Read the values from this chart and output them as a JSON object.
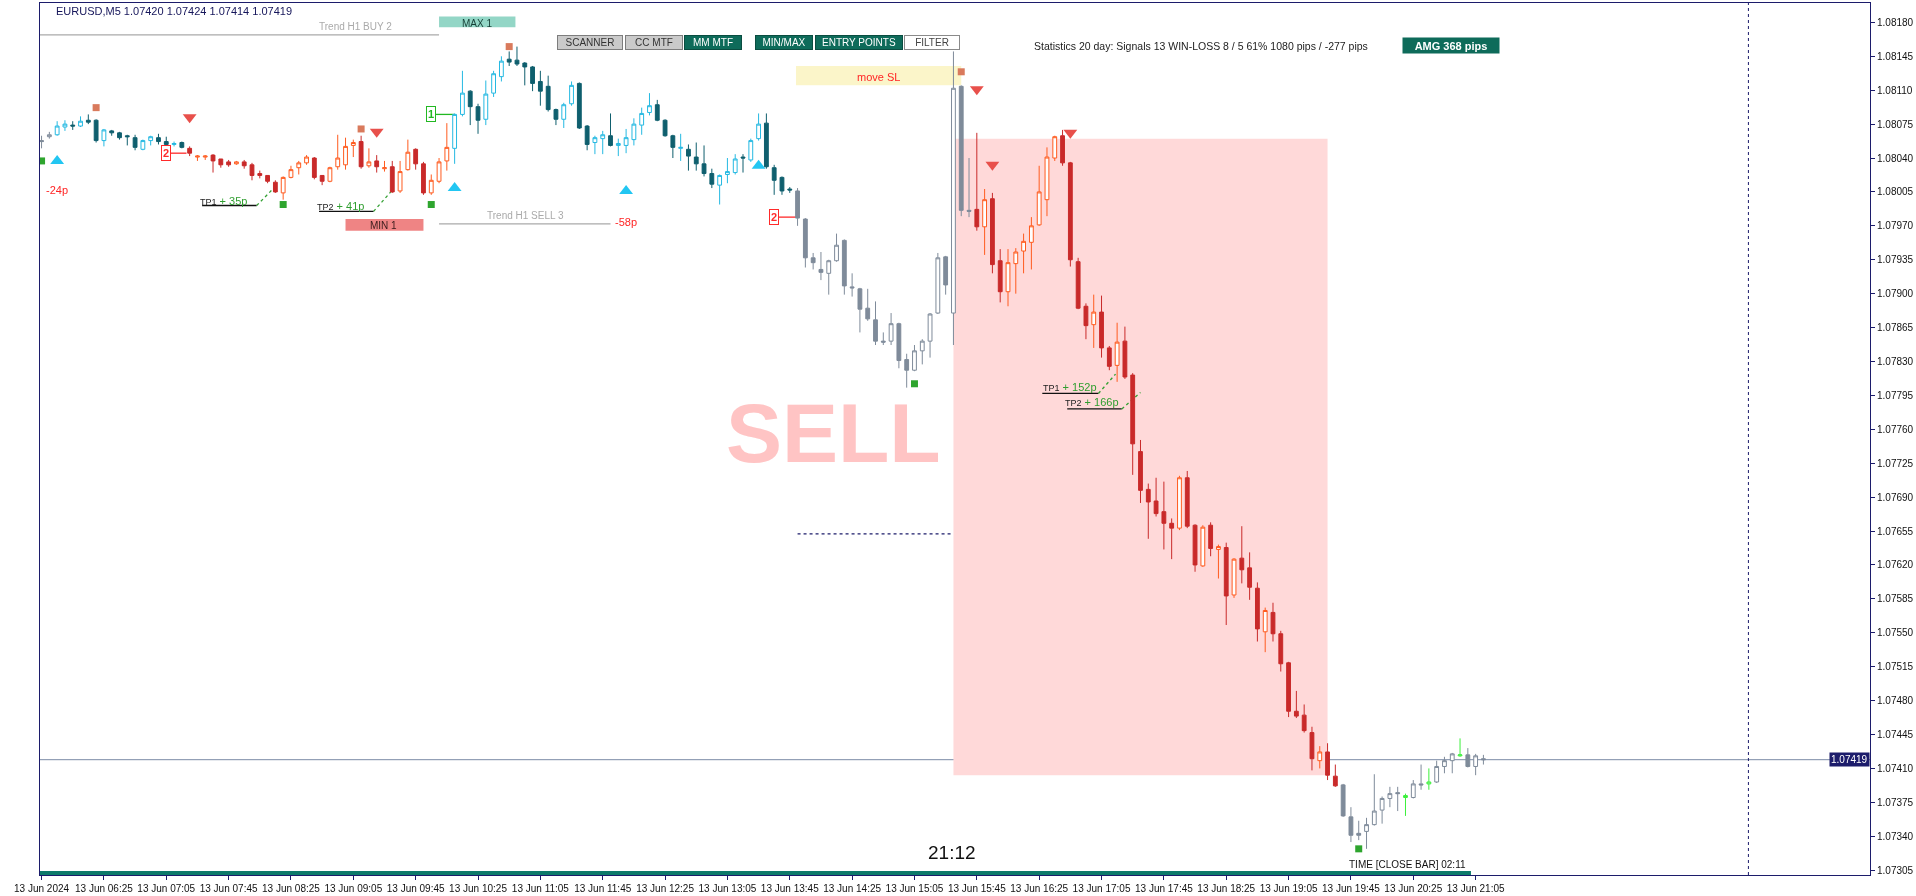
{
  "chart_data": {
    "type": "candlestick",
    "title": "EURUSD,M5 1.07420 1.07424 1.07414 1.07419",
    "x": [
      "2024-06-13T05:45",
      "2024-06-13T05:50",
      "2024-06-13T05:55",
      "2024-06-13T06:00",
      "2024-06-13T06:05",
      "2024-06-13T06:10",
      "2024-06-13T06:15",
      "2024-06-13T06:20",
      "2024-06-13T06:25",
      "2024-06-13T06:30",
      "2024-06-13T06:35",
      "2024-06-13T06:40",
      "2024-06-13T06:45",
      "2024-06-13T06:50",
      "2024-06-13T06:55",
      "2024-06-13T07:00",
      "2024-06-13T07:05",
      "2024-06-13T07:10",
      "2024-06-13T07:15",
      "2024-06-13T07:20",
      "2024-06-13T07:25",
      "2024-06-13T07:30",
      "2024-06-13T07:35",
      "2024-06-13T07:40",
      "2024-06-13T07:45",
      "2024-06-13T07:50",
      "2024-06-13T07:55",
      "2024-06-13T08:00",
      "2024-06-13T08:05",
      "2024-06-13T08:10",
      "2024-06-13T08:15",
      "2024-06-13T08:20",
      "2024-06-13T08:25",
      "2024-06-13T08:30",
      "2024-06-13T08:35",
      "2024-06-13T08:40",
      "2024-06-13T08:45",
      "2024-06-13T08:50",
      "2024-06-13T08:55",
      "2024-06-13T09:00",
      "2024-06-13T09:05",
      "2024-06-13T09:10",
      "2024-06-13T09:15",
      "2024-06-13T09:20",
      "2024-06-13T09:25",
      "2024-06-13T09:30",
      "2024-06-13T09:35",
      "2024-06-13T09:40",
      "2024-06-13T09:45",
      "2024-06-13T09:50",
      "2024-06-13T09:55",
      "2024-06-13T10:00",
      "2024-06-13T10:05",
      "2024-06-13T10:10",
      "2024-06-13T10:15",
      "2024-06-13T10:20",
      "2024-06-13T10:25",
      "2024-06-13T10:30",
      "2024-06-13T10:35",
      "2024-06-13T10:40",
      "2024-06-13T10:45",
      "2024-06-13T10:50",
      "2024-06-13T10:55",
      "2024-06-13T11:00",
      "2024-06-13T11:05",
      "2024-06-13T11:10",
      "2024-06-13T11:15",
      "2024-06-13T11:20",
      "2024-06-13T11:25",
      "2024-06-13T11:30",
      "2024-06-13T11:35",
      "2024-06-13T11:40",
      "2024-06-13T11:45",
      "2024-06-13T11:50",
      "2024-06-13T11:55",
      "2024-06-13T12:00",
      "2024-06-13T12:05",
      "2024-06-13T12:10",
      "2024-06-13T12:15",
      "2024-06-13T12:20",
      "2024-06-13T12:25",
      "2024-06-13T12:30",
      "2024-06-13T12:35",
      "2024-06-13T12:40",
      "2024-06-13T12:45",
      "2024-06-13T12:50",
      "2024-06-13T12:55",
      "2024-06-13T13:00",
      "2024-06-13T13:05",
      "2024-06-13T13:10",
      "2024-06-13T13:15",
      "2024-06-13T13:20",
      "2024-06-13T13:25",
      "2024-06-13T13:30",
      "2024-06-13T13:35",
      "2024-06-13T13:40",
      "2024-06-13T13:45",
      "2024-06-13T13:50",
      "2024-06-13T13:55",
      "2024-06-13T14:00",
      "2024-06-13T14:05",
      "2024-06-13T14:10",
      "2024-06-13T14:15",
      "2024-06-13T14:20",
      "2024-06-13T14:25",
      "2024-06-13T14:30",
      "2024-06-13T14:35",
      "2024-06-13T14:40",
      "2024-06-13T14:45",
      "2024-06-13T14:50",
      "2024-06-13T14:55",
      "2024-06-13T15:00",
      "2024-06-13T15:05",
      "2024-06-13T15:10",
      "2024-06-13T15:15",
      "2024-06-13T15:20",
      "2024-06-13T15:25",
      "2024-06-13T15:30",
      "2024-06-13T15:35",
      "2024-06-13T15:40",
      "2024-06-13T15:45",
      "2024-06-13T15:50",
      "2024-06-13T15:55",
      "2024-06-13T16:00",
      "2024-06-13T16:05",
      "2024-06-13T16:10",
      "2024-06-13T16:15",
      "2024-06-13T16:20",
      "2024-06-13T16:25",
      "2024-06-13T16:30",
      "2024-06-13T16:35",
      "2024-06-13T16:40",
      "2024-06-13T16:45",
      "2024-06-13T16:50",
      "2024-06-13T16:55",
      "2024-06-13T17:00",
      "2024-06-13T17:05",
      "2024-06-13T17:10",
      "2024-06-13T17:15",
      "2024-06-13T17:20",
      "2024-06-13T17:25",
      "2024-06-13T17:30",
      "2024-06-13T17:35",
      "2024-06-13T17:40",
      "2024-06-13T17:45",
      "2024-06-13T17:50",
      "2024-06-13T17:55",
      "2024-06-13T18:00",
      "2024-06-13T18:05",
      "2024-06-13T18:10",
      "2024-06-13T18:15",
      "2024-06-13T18:20",
      "2024-06-13T18:25",
      "2024-06-13T18:30",
      "2024-06-13T18:35",
      "2024-06-13T18:40",
      "2024-06-13T18:45",
      "2024-06-13T18:50",
      "2024-06-13T18:55",
      "2024-06-13T19:00",
      "2024-06-13T19:05",
      "2024-06-13T19:10",
      "2024-06-13T19:15",
      "2024-06-13T19:20",
      "2024-06-13T19:25",
      "2024-06-13T19:30",
      "2024-06-13T19:35",
      "2024-06-13T19:40",
      "2024-06-13T19:45",
      "2024-06-13T19:50",
      "2024-06-13T19:55",
      "2024-06-13T20:00",
      "2024-06-13T20:05",
      "2024-06-13T20:10",
      "2024-06-13T20:15",
      "2024-06-13T20:20",
      "2024-06-13T20:25",
      "2024-06-13T20:30",
      "2024-06-13T20:35",
      "2024-06-13T20:40",
      "2024-06-13T20:45",
      "2024-06-13T20:50",
      "2024-06-13T20:55",
      "2024-06-13T21:00",
      "2024-06-13T21:05",
      "2024-06-13T21:10"
    ],
    "ohlc": [
      [
        1.08058,
        1.08063,
        1.0805,
        1.08057
      ],
      [
        1.08062,
        1.08067,
        1.0806,
        1.08064
      ],
      [
        1.08064,
        1.08078,
        1.08063,
        1.08073
      ],
      [
        1.08072,
        1.08079,
        1.08068,
        1.08075
      ],
      [
        1.08074,
        1.08078,
        1.08069,
        1.08073
      ],
      [
        1.08073,
        1.08083,
        1.08072,
        1.08078
      ],
      [
        1.08079,
        1.08085,
        1.08075,
        1.08077
      ],
      [
        1.08079,
        1.0808,
        1.08056,
        1.08058
      ],
      [
        1.08058,
        1.0807,
        1.08052,
        1.08069
      ],
      [
        1.08068,
        1.08069,
        1.08063,
        1.08066
      ],
      [
        1.08066,
        1.08067,
        1.08059,
        1.08061
      ],
      [
        1.08063,
        1.08064,
        1.08053,
        1.08062
      ],
      [
        1.08061,
        1.08064,
        1.08048,
        1.08051
      ],
      [
        1.08049,
        1.08059,
        1.08048,
        1.08058
      ],
      [
        1.08058,
        1.08063,
        1.08053,
        1.08062
      ],
      [
        1.08061,
        1.08065,
        1.08054,
        1.08057
      ],
      [
        1.08057,
        1.08062,
        1.08053,
        1.08054
      ],
      [
        1.08054,
        1.08057,
        1.08052,
        1.08055
      ],
      [
        1.08056,
        1.08057,
        1.0805,
        1.08051
      ],
      [
        1.0805,
        1.08052,
        1.08042,
        1.08045
      ],
      [
        1.08041,
        1.08043,
        1.08037,
        1.08042
      ],
      [
        1.08041,
        1.08043,
        1.08038,
        1.08042
      ],
      [
        1.08043,
        1.08044,
        1.08025,
        1.08037
      ],
      [
        1.08039,
        1.08039,
        1.0803,
        1.08033
      ],
      [
        1.08036,
        1.08038,
        1.08031,
        1.08033
      ],
      [
        1.08034,
        1.08037,
        1.08033,
        1.08036
      ],
      [
        1.08036,
        1.08038,
        1.08029,
        1.08032
      ],
      [
        1.08033,
        1.08035,
        1.08017,
        1.08022
      ],
      [
        1.08024,
        1.08027,
        1.08019,
        1.08022
      ],
      [
        1.08022,
        1.08022,
        1.08014,
        1.08016
      ],
      [
        1.08015,
        1.08017,
        1.08004,
        1.08005
      ],
      [
        1.08004,
        1.08021,
        1.07997,
        1.0802
      ],
      [
        1.0802,
        1.08032,
        1.08019,
        1.08028
      ],
      [
        1.0803,
        1.08037,
        1.08023,
        1.08035
      ],
      [
        1.08035,
        1.08043,
        1.08033,
        1.08041
      ],
      [
        1.0804,
        1.08041,
        1.08018,
        1.0802
      ],
      [
        1.08022,
        1.08022,
        1.08012,
        1.08016
      ],
      [
        1.08016,
        1.08031,
        1.08015,
        1.0803
      ],
      [
        1.08031,
        1.08064,
        1.08028,
        1.0804
      ],
      [
        1.08033,
        1.08061,
        1.08028,
        1.08052
      ],
      [
        1.08053,
        1.08059,
        1.08041,
        1.08056
      ],
      [
        1.08057,
        1.08063,
        1.08029,
        1.08031
      ],
      [
        1.08032,
        1.0805,
        1.0803,
        1.08036
      ],
      [
        1.08037,
        1.08043,
        1.08025,
        1.08031
      ],
      [
        1.08029,
        1.08037,
        1.08026,
        1.0803
      ],
      [
        1.08031,
        1.08037,
        1.08004,
        1.08005
      ],
      [
        1.08006,
        1.08037,
        1.08004,
        1.08026
      ],
      [
        1.08028,
        1.08059,
        1.08027,
        1.08046
      ],
      [
        1.08049,
        1.0805,
        1.08028,
        1.08034
      ],
      [
        1.08034,
        1.08036,
        1.08002,
        1.08004
      ],
      [
        1.08004,
        1.08023,
        1.08002,
        1.08017
      ],
      [
        1.08016,
        1.0804,
        1.08014,
        1.08036
      ],
      [
        1.08037,
        1.08076,
        1.08027,
        1.08051
      ],
      [
        1.0805,
        1.08086,
        1.08034,
        1.08085
      ],
      [
        1.08085,
        1.0813,
        1.08083,
        1.08107
      ],
      [
        1.08109,
        1.0811,
        1.08074,
        1.08093
      ],
      [
        1.08093,
        1.08096,
        1.08065,
        1.08079
      ],
      [
        1.0808,
        1.0812,
        1.08074,
        1.08106
      ],
      [
        1.08107,
        1.0813,
        1.08103,
        1.08127
      ],
      [
        1.08124,
        1.08145,
        1.08119,
        1.0814
      ],
      [
        1.08142,
        1.0815,
        1.08135,
        1.08139
      ],
      [
        1.08141,
        1.08155,
        1.08135,
        1.08137
      ],
      [
        1.08138,
        1.08139,
        1.08115,
        1.08134
      ],
      [
        1.08134,
        1.08135,
        1.08109,
        1.08117
      ],
      [
        1.08119,
        1.0813,
        1.08094,
        1.08109
      ],
      [
        1.08114,
        1.08125,
        1.08088,
        1.0809
      ],
      [
        1.0809,
        1.08091,
        1.08074,
        1.0808
      ],
      [
        1.0808,
        1.08097,
        1.08071,
        1.08095
      ],
      [
        1.08096,
        1.08119,
        1.08094,
        1.08115
      ],
      [
        1.08117,
        1.08118,
        1.0807,
        1.08071
      ],
      [
        1.08073,
        1.08074,
        1.08048,
        1.08054
      ],
      [
        1.08056,
        1.08063,
        1.08044,
        1.08061
      ],
      [
        1.0806,
        1.08068,
        1.08044,
        1.08064
      ],
      [
        1.08063,
        1.08086,
        1.08052,
        1.08053
      ],
      [
        1.08053,
        1.0806,
        1.08042,
        1.08055
      ],
      [
        1.08053,
        1.0807,
        1.08045,
        1.08061
      ],
      [
        1.08059,
        1.08081,
        1.08053,
        1.08075
      ],
      [
        1.08074,
        1.08092,
        1.08064,
        1.08086
      ],
      [
        1.08087,
        1.08107,
        1.08084,
        1.08094
      ],
      [
        1.08095,
        1.081,
        1.08078,
        1.08079
      ],
      [
        1.08079,
        1.0808,
        1.08062,
        1.08063
      ],
      [
        1.08063,
        1.08064,
        1.0804,
        1.08051
      ],
      [
        1.0805,
        1.08065,
        1.08037,
        1.08051
      ],
      [
        1.08049,
        1.08054,
        1.08027,
        1.08042
      ],
      [
        1.08041,
        1.08056,
        1.08027,
        1.08034
      ],
      [
        1.08034,
        1.08053,
        1.08021,
        1.08024
      ],
      [
        1.08024,
        1.08029,
        1.08009,
        1.08013
      ],
      [
        1.08012,
        1.08023,
        1.07992,
        1.08022
      ],
      [
        1.08023,
        1.0804,
        1.08014,
        1.08026
      ],
      [
        1.08025,
        1.08044,
        1.08023,
        1.08039
      ],
      [
        1.08041,
        1.08044,
        1.08025,
        1.0804
      ],
      [
        1.08038,
        1.0806,
        1.08036,
        1.08058
      ],
      [
        1.0806,
        1.08086,
        1.08058,
        1.08075
      ],
      [
        1.08076,
        1.08086,
        1.08029,
        1.08031
      ],
      [
        1.0803,
        1.08033,
        1.08002,
        1.08017
      ],
      [
        1.0802,
        1.08021,
        1.08002,
        1.08006
      ],
      [
        1.08008,
        1.0801,
        1.08004,
        1.08007
      ],
      [
        1.08006,
        1.08009,
        1.0797,
        1.07978
      ],
      [
        1.07977,
        1.07978,
        1.07927,
        1.07937
      ],
      [
        1.07937,
        1.07942,
        1.07925,
        1.07932
      ],
      [
        1.07925,
        1.07943,
        1.07914,
        1.07922
      ],
      [
        1.07921,
        1.07935,
        1.07899,
        1.07934
      ],
      [
        1.07934,
        1.07962,
        1.07933,
        1.0795
      ],
      [
        1.07955,
        1.07956,
        1.07899,
        1.07908
      ],
      [
        1.07907,
        1.07921,
        1.07897,
        1.07906
      ],
      [
        1.07905,
        1.07906,
        1.0786,
        1.07884
      ],
      [
        1.07885,
        1.07905,
        1.07872,
        1.07874
      ],
      [
        1.07873,
        1.07892,
        1.07847,
        1.07851
      ],
      [
        1.07851,
        1.0786,
        1.07847,
        1.0785
      ],
      [
        1.07851,
        1.0788,
        1.07847,
        1.07869
      ],
      [
        1.07869,
        1.0787,
        1.07823,
        1.07831
      ],
      [
        1.07832,
        1.07838,
        1.07803,
        1.07821
      ],
      [
        1.07821,
        1.07847,
        1.0782,
        1.07841
      ],
      [
        1.07841,
        1.07853,
        1.07827,
        1.07851
      ],
      [
        1.07851,
        1.0788,
        1.07834,
        1.07879
      ],
      [
        1.0788,
        1.07942,
        1.07879,
        1.07937
      ],
      [
        1.07938,
        1.07939,
        1.07899,
        1.07909
      ],
      [
        1.0788,
        1.0815,
        1.07847,
        1.08112
      ],
      [
        1.08114,
        1.08115,
        1.0798,
        1.07986
      ],
      [
        1.07986,
        1.0804,
        1.07979,
        1.07985
      ],
      [
        1.07987,
        1.08066,
        1.07965,
        1.07969
      ],
      [
        1.07969,
        1.08008,
        1.0794,
        1.07997
      ],
      [
        1.07998,
        1.08004,
        1.07921,
        1.0793
      ],
      [
        1.07934,
        1.07946,
        1.07891,
        1.07902
      ],
      [
        1.07902,
        1.07946,
        1.07887,
        1.07932
      ],
      [
        1.07931,
        1.07947,
        1.079,
        1.07943
      ],
      [
        1.07944,
        1.07962,
        1.07921,
        1.07954
      ],
      [
        1.07953,
        1.07979,
        1.07925,
        1.0797
      ],
      [
        1.07971,
        1.08032,
        1.0797,
        1.08005
      ],
      [
        1.07997,
        1.08051,
        1.0798,
        1.08041
      ],
      [
        1.0804,
        1.08063,
        1.08037,
        1.08062
      ],
      [
        1.08063,
        1.08069,
        1.08032,
        1.08035
      ],
      [
        1.08035,
        1.08036,
        1.07928,
        1.07935
      ],
      [
        1.07933,
        1.07937,
        1.07884,
        1.07885
      ],
      [
        1.07887,
        1.0789,
        1.07853,
        1.07867
      ],
      [
        1.07868,
        1.07899,
        1.07844,
        1.07881
      ],
      [
        1.07881,
        1.07898,
        1.07834,
        1.07844
      ],
      [
        1.07844,
        1.07846,
        1.07821,
        1.07825
      ],
      [
        1.07826,
        1.0787,
        1.07809,
        1.0785
      ],
      [
        1.07851,
        1.07866,
        1.07812,
        1.07814
      ],
      [
        1.07816,
        1.07818,
        1.07713,
        1.07745
      ],
      [
        1.07737,
        1.07749,
        1.07684,
        1.07697
      ],
      [
        1.07698,
        1.07704,
        1.07647,
        1.07685
      ],
      [
        1.07686,
        1.0771,
        1.0767,
        1.07673
      ],
      [
        1.07675,
        1.07706,
        1.07636,
        1.07663
      ],
      [
        1.07663,
        1.07668,
        1.07626,
        1.07658
      ],
      [
        1.07658,
        1.07712,
        1.07656,
        1.0771
      ],
      [
        1.0771,
        1.07717,
        1.07658,
        1.0766
      ],
      [
        1.07661,
        1.07662,
        1.07613,
        1.0762
      ],
      [
        1.07619,
        1.07661,
        1.07618,
        1.07659
      ],
      [
        1.07661,
        1.07664,
        1.07629,
        1.07637
      ],
      [
        1.07636,
        1.07641,
        1.07606,
        1.07639
      ],
      [
        1.07638,
        1.07643,
        1.07558,
        1.07588
      ],
      [
        1.07589,
        1.07627,
        1.07586,
        1.07626
      ],
      [
        1.07627,
        1.0766,
        1.07601,
        1.07615
      ],
      [
        1.07617,
        1.07633,
        1.07584,
        1.07597
      ],
      [
        1.07596,
        1.07602,
        1.07541,
        1.07554
      ],
      [
        1.07551,
        1.07576,
        1.0753,
        1.07573
      ],
      [
        1.07571,
        1.07581,
        1.07541,
        1.07549
      ],
      [
        1.07549,
        1.07552,
        1.0751,
        1.07518
      ],
      [
        1.07519,
        1.0752,
        1.07463,
        1.07469
      ],
      [
        1.07469,
        1.0749,
        1.07462,
        1.07464
      ],
      [
        1.07465,
        1.07476,
        1.07447,
        1.07449
      ],
      [
        1.07447,
        1.07453,
        1.07408,
        1.0742
      ],
      [
        1.07418,
        1.07433,
        1.0741,
        1.07427
      ],
      [
        1.07427,
        1.07436,
        1.07398,
        1.07403
      ],
      [
        1.07402,
        1.07414,
        1.07391,
        1.07392
      ],
      [
        1.07393,
        1.07394,
        1.0736,
        1.07361
      ],
      [
        1.0736,
        1.0737,
        1.07334,
        1.07341
      ],
      [
        1.07343,
        1.07356,
        1.07336,
        1.07341
      ],
      [
        1.07345,
        1.07359,
        1.07327,
        1.07352
      ],
      [
        1.07352,
        1.07404,
        1.07351,
        1.07366
      ],
      [
        1.07367,
        1.07381,
        1.07353,
        1.07379
      ],
      [
        1.07379,
        1.07391,
        1.0737,
        1.07384
      ],
      [
        1.07385,
        1.07391,
        1.07366,
        1.07384
      ],
      [
        1.0738,
        1.07384,
        1.07361,
        1.07382
      ],
      [
        1.0738,
        1.07398,
        1.07379,
        1.07394
      ],
      [
        1.07394,
        1.07414,
        1.07388,
        1.07393
      ],
      [
        1.07394,
        1.0741,
        1.07388,
        1.07396
      ],
      [
        1.07396,
        1.07418,
        1.07395,
        1.07412
      ],
      [
        1.07412,
        1.07422,
        1.07405,
        1.07418
      ],
      [
        1.07418,
        1.07426,
        1.07405,
        1.07425
      ],
      [
        1.07423,
        1.07441,
        1.07422,
        1.07424
      ],
      [
        1.07424,
        1.07431,
        1.07411,
        1.07412
      ],
      [
        1.07412,
        1.07425,
        1.07403,
        1.07423
      ],
      [
        1.0742,
        1.07424,
        1.07414,
        1.07419
      ]
    ],
    "colors": [
      "#7f8b9a",
      "#7f8b9a",
      "#25b9e2",
      "#25b9e2",
      "#0f5f6e",
      "#25b9e2",
      "#0f5f6e",
      "#0f5f6e",
      "#25b9e2",
      "#0f5f6e",
      "#0f5f6e",
      "#0f5f6e",
      "#0f5f6e",
      "#25b9e2",
      "#25b9e2",
      "#0f5f6e",
      "#0f5f6e",
      "#25b9e2",
      "#0f5f6e",
      "#c92a2a",
      "#ff5b1f",
      "#ff5b1f",
      "#c92a2a",
      "#c92a2a",
      "#c92a2a",
      "#ff5b1f",
      "#c92a2a",
      "#c92a2a",
      "#c92a2a",
      "#c92a2a",
      "#c92a2a",
      "#ff5b1f",
      "#ff5b1f",
      "#ff5b1f",
      "#ff5b1f",
      "#c92a2a",
      "#c92a2a",
      "#ff5b1f",
      "#ff5b1f",
      "#ff5b1f",
      "#ff5b1f",
      "#c92a2a",
      "#ff5b1f",
      "#c92a2a",
      "#ff5b1f",
      "#c92a2a",
      "#ff5b1f",
      "#ff5b1f",
      "#c92a2a",
      "#c92a2a",
      "#ff5b1f",
      "#ff5b1f",
      "#ff5b1f",
      "#25b9e2",
      "#25b9e2",
      "#0f5f6e",
      "#0f5f6e",
      "#25b9e2",
      "#25b9e2",
      "#25b9e2",
      "#0f5f6e",
      "#0f5f6e",
      "#0f5f6e",
      "#0f5f6e",
      "#0f5f6e",
      "#0f5f6e",
      "#0f5f6e",
      "#25b9e2",
      "#25b9e2",
      "#0f5f6e",
      "#0f5f6e",
      "#25b9e2",
      "#25b9e2",
      "#0f5f6e",
      "#25b9e2",
      "#25b9e2",
      "#25b9e2",
      "#25b9e2",
      "#25b9e2",
      "#0f5f6e",
      "#0f5f6e",
      "#0f5f6e",
      "#25b9e2",
      "#0f5f6e",
      "#0f5f6e",
      "#0f5f6e",
      "#0f5f6e",
      "#25b9e2",
      "#25b9e2",
      "#25b9e2",
      "#0f5f6e",
      "#25b9e2",
      "#25b9e2",
      "#0f5f6e",
      "#0f5f6e",
      "#0f5f6e",
      "#0f5f6e",
      "#7f8b9a",
      "#7f8b9a",
      "#7f8b9a",
      "#7f8b9a",
      "#7f8b9a",
      "#7f8b9a",
      "#7f8b9a",
      "#7f8b9a",
      "#7f8b9a",
      "#7f8b9a",
      "#7f8b9a",
      "#7f8b9a",
      "#7f8b9a",
      "#7f8b9a",
      "#7f8b9a",
      "#7f8b9a",
      "#7f8b9a",
      "#7f8b9a",
      "#7f8b9a",
      "#7f8b9a",
      "#7f8b9a",
      "#7f8b9a",
      "#7f8b9a",
      "#c92a2a",
      "#ff5b1f",
      "#c92a2a",
      "#c92a2a",
      "#ff5b1f",
      "#ff5b1f",
      "#ff5b1f",
      "#ff5b1f",
      "#ff5b1f",
      "#ff5b1f",
      "#ff5b1f",
      "#c92a2a",
      "#c92a2a",
      "#c92a2a",
      "#c92a2a",
      "#ff5b1f",
      "#c92a2a",
      "#c92a2a",
      "#ff5b1f",
      "#c92a2a",
      "#c92a2a",
      "#c92a2a",
      "#c92a2a",
      "#c92a2a",
      "#c92a2a",
      "#c92a2a",
      "#ff5b1f",
      "#c92a2a",
      "#c92a2a",
      "#ff5b1f",
      "#c92a2a",
      "#ff5b1f",
      "#c92a2a",
      "#ff5b1f",
      "#c92a2a",
      "#c92a2a",
      "#c92a2a",
      "#ff5b1f",
      "#c92a2a",
      "#c92a2a",
      "#c92a2a",
      "#c92a2a",
      "#c92a2a",
      "#c92a2a",
      "#ff5b1f",
      "#c92a2a",
      "#c92a2a",
      "#7f8b9a",
      "#7f8b9a",
      "#7f8b9a",
      "#7f8b9a",
      "#7f8b9a",
      "#7f8b9a",
      "#7f8b9a",
      "#7f8b9a",
      "#3cf03c",
      "#7f8b9a",
      "#7f8b9a",
      "#3cf03c",
      "#7f8b9a",
      "#7f8b9a",
      "#7f8b9a",
      "#3cf03c",
      "#7f8b9a",
      "#7f8b9a",
      "#7f8b9a"
    ],
    "xlim": [
      "2024-06-13T05:44",
      "2024-06-14T01:18"
    ],
    "xticks": [
      {
        "value": "2024-06-13T05:45",
        "label": "13 Jun 2024"
      },
      {
        "value": "2024-06-13T06:25",
        "label": "13 Jun 06:25"
      },
      {
        "value": "2024-06-13T07:05",
        "label": "13 Jun 07:05"
      },
      {
        "value": "2024-06-13T07:45",
        "label": "13 Jun 07:45"
      },
      {
        "value": "2024-06-13T08:25",
        "label": "13 Jun 08:25"
      },
      {
        "value": "2024-06-13T09:05",
        "label": "13 Jun 09:05"
      },
      {
        "value": "2024-06-13T09:45",
        "label": "13 Jun 09:45"
      },
      {
        "value": "2024-06-13T10:25",
        "label": "13 Jun 10:25"
      },
      {
        "value": "2024-06-13T11:05",
        "label": "13 Jun 11:05"
      },
      {
        "value": "2024-06-13T11:45",
        "label": "13 Jun 11:45"
      },
      {
        "value": "2024-06-13T12:25",
        "label": "13 Jun 12:25"
      },
      {
        "value": "2024-06-13T13:05",
        "label": "13 Jun 13:05"
      },
      {
        "value": "2024-06-13T13:45",
        "label": "13 Jun 13:45"
      },
      {
        "value": "2024-06-13T14:25",
        "label": "13 Jun 14:25"
      },
      {
        "value": "2024-06-13T15:05",
        "label": "13 Jun 15:05"
      },
      {
        "value": "2024-06-13T15:45",
        "label": "13 Jun 15:45"
      },
      {
        "value": "2024-06-13T16:25",
        "label": "13 Jun 16:25"
      },
      {
        "value": "2024-06-13T17:05",
        "label": "13 Jun 17:05"
      },
      {
        "value": "2024-06-13T17:45",
        "label": "13 Jun 17:45"
      },
      {
        "value": "2024-06-13T18:25",
        "label": "13 Jun 18:25"
      },
      {
        "value": "2024-06-13T19:05",
        "label": "13 Jun 19:05"
      },
      {
        "value": "2024-06-13T19:45",
        "label": "13 Jun 19:45"
      },
      {
        "value": "2024-06-13T20:25",
        "label": "13 Jun 20:25"
      },
      {
        "value": "2024-06-13T21:05",
        "label": "13 Jun 21:05"
      }
    ],
    "ylim": [
      1.073,
      1.082
    ],
    "yticks": [
      {
        "value": 1.07305,
        "label": "1.07305"
      },
      {
        "value": 1.0734,
        "label": "1.07340"
      },
      {
        "value": 1.07375,
        "label": "1.07375"
      },
      {
        "value": 1.0741,
        "label": "1.07410"
      },
      {
        "value": 1.07445,
        "label": "1.07445"
      },
      {
        "value": 1.0748,
        "label": "1.07480"
      },
      {
        "value": 1.07515,
        "label": "1.07515"
      },
      {
        "value": 1.0755,
        "label": "1.07550"
      },
      {
        "value": 1.07585,
        "label": "1.07585"
      },
      {
        "value": 1.0762,
        "label": "1.07620"
      },
      {
        "value": 1.07655,
        "label": "1.07655"
      },
      {
        "value": 1.0769,
        "label": "1.07690"
      },
      {
        "value": 1.07725,
        "label": "1.07725"
      },
      {
        "value": 1.0776,
        "label": "1.07760"
      },
      {
        "value": 1.07795,
        "label": "1.07795"
      },
      {
        "value": 1.0783,
        "label": "1.07830"
      },
      {
        "value": 1.07865,
        "label": "1.07865"
      },
      {
        "value": 1.079,
        "label": "1.07900"
      },
      {
        "value": 1.07935,
        "label": "1.07935"
      },
      {
        "value": 1.0797,
        "label": "1.07970"
      },
      {
        "value": 1.08005,
        "label": "1.08005"
      },
      {
        "value": 1.0804,
        "label": "1.08040"
      },
      {
        "value": 1.08075,
        "label": "1.08075"
      },
      {
        "value": 1.0811,
        "label": "1.08110"
      },
      {
        "value": 1.08145,
        "label": "1.08145"
      },
      {
        "value": 1.0818,
        "label": "1.08180"
      }
    ],
    "series": [
      {
        "type": "line",
        "color": "#ffd9d9",
        "x": [
          "2024-06-13T15:30",
          "2024-06-13T19:30"
        ],
        "values": [
          null,
          null
        ],
        "lower": [
          1.07403,
          1.07403
        ],
        "upper": [
          1.0806,
          1.0806
        ]
      },
      {
        "type": "line",
        "color": "#0d7a6a",
        "x": [
          "2024-06-13T05:44",
          "2024-06-13T21:02"
        ],
        "values": [
          null,
          null
        ],
        "lower": [
          1.073,
          1.073
        ],
        "upper": [
          1.07304,
          1.07304
        ]
      },
      {
        "type": "line",
        "color": "#93d6c6",
        "x": [
          "2024-06-13T10:00",
          "2024-06-13T10:49"
        ],
        "values": [
          null,
          null
        ],
        "lower": [
          1.08175,
          1.08175
        ],
        "upper": [
          1.08186,
          1.08186
        ]
      },
      {
        "type": "line",
        "color": "#ef8484",
        "x": [
          "2024-06-13T09:00",
          "2024-06-13T09:50"
        ],
        "values": [
          null,
          null
        ],
        "lower": [
          1.07965,
          1.07965
        ],
        "upper": [
          1.07977,
          1.07977
        ]
      },
      {
        "type": "line",
        "color": "#fbf5c9",
        "x": [
          "2024-06-13T13:49",
          "2024-06-13T15:35"
        ],
        "values": [
          null,
          null
        ],
        "lower": [
          1.08115,
          1.08115
        ],
        "upper": [
          1.08135,
          1.08135
        ]
      },
      {
        "type": "line",
        "name": "Trend H1 BUY 2",
        "color": "#aaaaaa",
        "x": [
          "2024-06-13T05:44",
          "2024-06-13T10:00"
        ],
        "values": [
          1.08167,
          1.08167
        ]
      },
      {
        "type": "line",
        "name": "Trend H1 SELL 3",
        "color": "#aaaaaa",
        "x": [
          "2024-06-13T10:00",
          "2024-06-13T11:50"
        ],
        "values": [
          1.07972,
          1.07972
        ]
      },
      {
        "type": "line",
        "color": "#1c1c6b",
        "line_style": "dotted",
        "x": [
          "2024-06-13T13:50",
          "2024-06-13T15:30"
        ],
        "values": [
          1.07652,
          1.07652
        ]
      },
      {
        "type": "line",
        "color": "#22b822",
        "x": [
          "2024-06-13T09:55",
          "2024-06-13T10:10"
        ],
        "values": [
          1.08085,
          1.08085
        ]
      },
      {
        "type": "line",
        "color": "#ff2a2a",
        "x": [
          "2024-06-13T07:05",
          "2024-06-13T07:18"
        ],
        "values": [
          1.08045,
          1.08045
        ]
      },
      {
        "type": "line",
        "color": "#ff2a2a",
        "x": [
          "2024-06-13T13:35",
          "2024-06-13T13:50"
        ],
        "values": [
          1.07979,
          1.07979
        ]
      },
      {
        "type": "line",
        "color": "#111111",
        "x": [
          "2024-06-13T07:28",
          "2024-06-13T08:03"
        ],
        "values": [
          1.07991,
          1.07991
        ]
      },
      {
        "type": "line",
        "color": "#111111",
        "x": [
          "2024-06-13T08:43",
          "2024-06-13T09:18"
        ],
        "values": [
          1.07985,
          1.07985
        ]
      },
      {
        "type": "line",
        "color": "#111111",
        "x": [
          "2024-06-13T16:27",
          "2024-06-13T17:03"
        ],
        "values": [
          1.07797,
          1.07797
        ]
      },
      {
        "type": "line",
        "color": "#111111",
        "x": [
          "2024-06-13T16:43",
          "2024-06-13T17:18"
        ],
        "values": [
          1.07781,
          1.07781
        ]
      },
      {
        "type": "line",
        "color": "#33a033",
        "line_style": "dotted",
        "x": [
          "2024-06-13T08:03",
          "2024-06-13T08:14"
        ],
        "values": [
          1.07991,
          1.08009
        ]
      },
      {
        "type": "line",
        "color": "#33a033",
        "line_style": "dotted",
        "x": [
          "2024-06-13T09:18",
          "2024-06-13T09:29"
        ],
        "values": [
          1.07985,
          1.08005
        ]
      },
      {
        "type": "line",
        "color": "#33a033",
        "line_style": "dotted",
        "x": [
          "2024-06-13T17:03",
          "2024-06-13T17:14"
        ],
        "values": [
          1.07797,
          1.07817
        ]
      },
      {
        "type": "line",
        "color": "#33a033",
        "line_style": "dotted",
        "x": [
          "2024-06-13T17:18",
          "2024-06-13T17:30"
        ],
        "values": [
          1.07781,
          1.07798
        ]
      },
      {
        "type": "scatter",
        "color": "#22c6f2",
        "marker": "triangle",
        "x": [
          "2024-06-13T05:55",
          "2024-06-13T10:10",
          "2024-06-13T12:00",
          "2024-06-13T13:25"
        ],
        "values": [
          1.08037,
          1.08009,
          1.08006,
          1.08032
        ]
      },
      {
        "type": "scatter",
        "color": "#e8504b",
        "marker": "triangle-down",
        "x": [
          "2024-06-13T07:20",
          "2024-06-13T09:20",
          "2024-06-13T15:45",
          "2024-06-13T15:55",
          "2024-06-13T16:45"
        ],
        "values": [
          1.08082,
          1.08067,
          1.08111,
          1.08033,
          1.08066
        ]
      },
      {
        "type": "scatter",
        "color": "#d97a5c",
        "marker": "square",
        "x": [
          "2024-06-13T06:20",
          "2024-06-13T09:10",
          "2024-06-13T10:45",
          "2024-06-13T15:35"
        ],
        "values": [
          1.08092,
          1.0807,
          1.08155,
          1.08129
        ]
      },
      {
        "type": "scatter",
        "color": "#2ea52e",
        "marker": "square",
        "x": [
          "2024-06-13T05:45",
          "2024-06-13T08:20",
          "2024-06-13T09:55",
          "2024-06-13T15:05",
          "2024-06-13T19:50"
        ],
        "values": [
          1.08037,
          1.07992,
          1.07992,
          1.07807,
          1.07327
        ]
      }
    ],
    "ref_lines": [
      {
        "axis": "y",
        "value": 1.07419,
        "label": "1.07419",
        "color": "#7b8aa5"
      },
      {
        "axis": "x",
        "value": "2024-06-14T00:00",
        "color": "#1c1c6b",
        "line_style": "dotted"
      }
    ],
    "annotations": [
      {
        "text": "TP1 + 35p",
        "x": "2024-06-13T07:42",
        "y": 1.07996
      },
      {
        "text": "TP2 + 41p",
        "x": "2024-06-13T08:57",
        "y": 1.0799
      },
      {
        "text": "1",
        "x": "2024-06-13T09:55",
        "y": 1.08085
      },
      {
        "text": "2",
        "x": "2024-06-13T07:05",
        "y": 1.08045
      },
      {
        "text": "2",
        "x": "2024-06-13T13:35",
        "y": 1.07979
      },
      "-24p",
      "MIN 1",
      "MAX 1",
      "-58p",
      "move SL",
      "SELL",
      "TP1 + 152p",
      "TP2 + 166p",
      "SCANNER",
      "CC MTF",
      "MM MTF",
      "MIN/MAX",
      "ENTRY POINTS",
      "FILTER",
      "Statistics 20 day: Signals 13 WIN-LOSS 8 / 5 61% 1080 pips / -277 pips",
      "AMG 368 pips",
      "21:12",
      "TIME [CLOSE BAR] 02:11"
    ]
  }
}
